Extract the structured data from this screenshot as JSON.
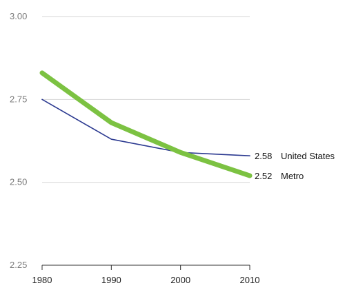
{
  "chart_data": {
    "type": "line",
    "x": [
      1980,
      1990,
      2000,
      2010
    ],
    "x_tick_labels": [
      "1980",
      "1990",
      "2000",
      "2010"
    ],
    "y_ticks": [
      3.0,
      2.75,
      2.5,
      2.25
    ],
    "y_tick_labels": [
      "3.00",
      "2.75",
      "2.50",
      "2.25"
    ],
    "ylim": [
      2.25,
      3.0
    ],
    "grid": true,
    "series": [
      {
        "key": "us",
        "color": "#2b3990",
        "values": [
          2.75,
          2.63,
          2.59,
          2.58
        ],
        "end_value_label": "2.58",
        "end_name_label": "United States"
      },
      {
        "key": "metro",
        "color": "#7cc242",
        "values": [
          2.83,
          2.68,
          2.59,
          2.52
        ],
        "end_value_label": "2.52",
        "end_name_label": "Metro"
      }
    ]
  }
}
